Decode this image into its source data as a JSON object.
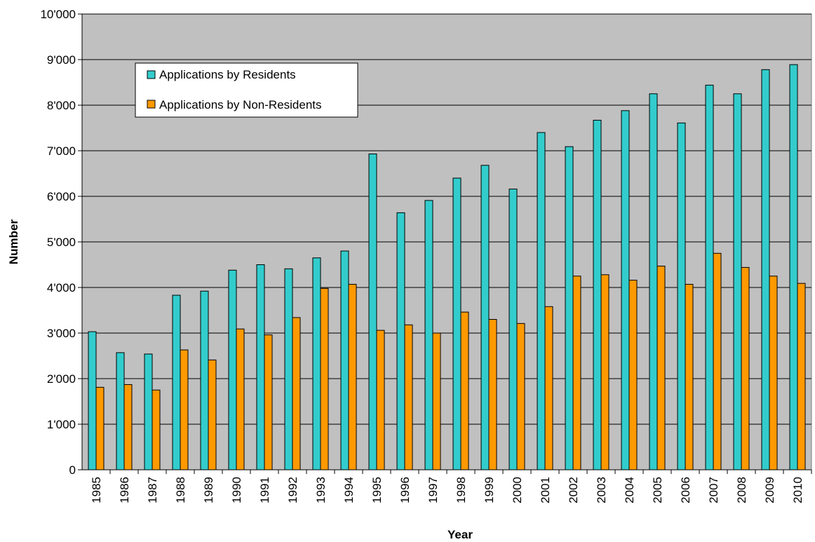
{
  "chart_data": {
    "type": "bar",
    "title": "",
    "xlabel": "Year",
    "ylabel": "Number",
    "ylim": [
      0,
      10000
    ],
    "ytick_step": 1000,
    "grid": true,
    "legend_position": "top-left",
    "categories": [
      "1985",
      "1986",
      "1987",
      "1988",
      "1989",
      "1990",
      "1991",
      "1992",
      "1993",
      "1994",
      "1995",
      "1996",
      "1997",
      "1998",
      "1999",
      "2000",
      "2001",
      "2002",
      "2003",
      "2004",
      "2005",
      "2006",
      "2007",
      "2008",
      "2009",
      "2010"
    ],
    "series": [
      {
        "name": "Applications by Residents",
        "color": "#33CCCC",
        "values": [
          3030,
          2570,
          2540,
          3830,
          3920,
          4380,
          4500,
          4410,
          4650,
          4800,
          6930,
          5640,
          5910,
          6400,
          6680,
          6160,
          7400,
          7090,
          7670,
          7880,
          8250,
          7610,
          8440,
          8250,
          8780,
          8890
        ]
      },
      {
        "name": "Applications by Non-Residents",
        "color": "#FF9900",
        "values": [
          1810,
          1870,
          1750,
          2630,
          2410,
          3090,
          2960,
          3340,
          3980,
          4070,
          3060,
          3180,
          3000,
          3460,
          3300,
          3210,
          3580,
          4250,
          4280,
          4160,
          4470,
          4070,
          4750,
          4440,
          4250,
          4090
        ]
      }
    ]
  }
}
